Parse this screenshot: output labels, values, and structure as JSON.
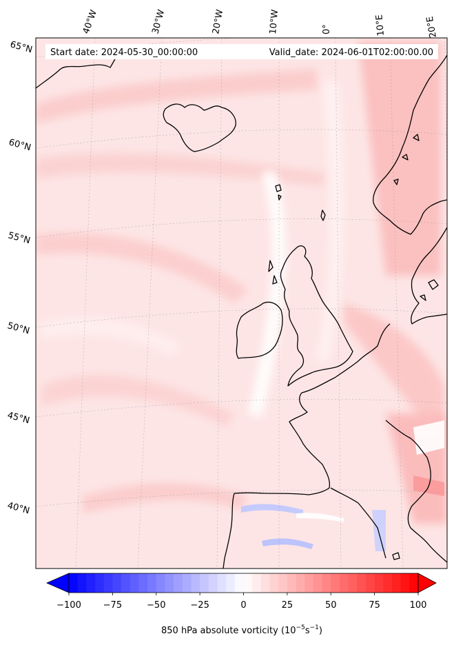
{
  "header": {
    "start_date": "Start date: 2024-05-30_00:00:00",
    "valid_date": "Valid_date: 2024-06-01T02:00:00.00"
  },
  "map": {
    "longitude_labels": [
      "40°W",
      "30°W",
      "20°W",
      "10°W",
      "0°",
      "10°E",
      "20°E"
    ],
    "latitude_labels": [
      "65°N",
      "60°N",
      "55°N",
      "50°N",
      "45°N",
      "40°N"
    ],
    "land_color": "#fde3e3",
    "coastline_color": "#000000"
  },
  "colorbar": {
    "ticks": [
      "−100",
      "−75",
      "−50",
      "−25",
      "0",
      "25",
      "50",
      "75",
      "100"
    ],
    "label_main": "850 hPa absolute vorticity (10",
    "label_sup1": "−5",
    "label_mid": "s",
    "label_sup2": "−1",
    "label_end": ")",
    "cmap_low": "#0000ff",
    "cmap_mid": "#ffffff",
    "cmap_high": "#ff0000"
  }
}
